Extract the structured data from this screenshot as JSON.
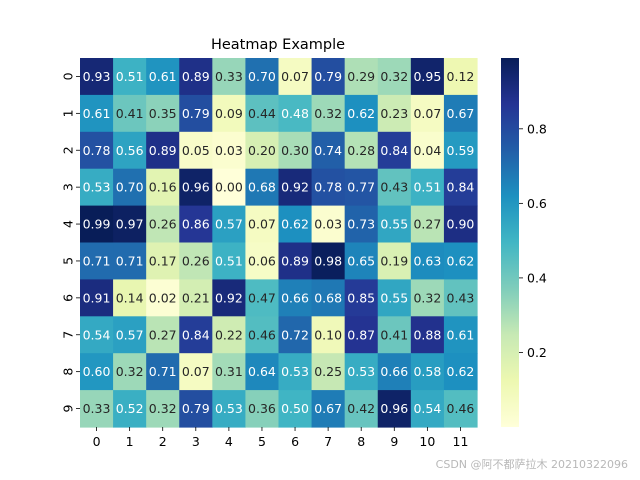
{
  "chart_data": {
    "type": "heatmap",
    "title": "Heatmap Example",
    "xlabel": "",
    "ylabel": "",
    "x_ticks": [
      "0",
      "1",
      "2",
      "3",
      "4",
      "5",
      "6",
      "7",
      "8",
      "9",
      "10",
      "11"
    ],
    "y_ticks": [
      "0",
      "1",
      "2",
      "3",
      "4",
      "5",
      "6",
      "7",
      "8",
      "9"
    ],
    "values": [
      [
        0.93,
        0.51,
        0.61,
        0.89,
        0.33,
        0.7,
        0.07,
        0.79,
        0.29,
        0.32,
        0.95,
        0.12
      ],
      [
        0.61,
        0.41,
        0.35,
        0.79,
        0.09,
        0.44,
        0.48,
        0.32,
        0.62,
        0.23,
        0.07,
        0.67
      ],
      [
        0.78,
        0.56,
        0.89,
        0.05,
        0.03,
        0.2,
        0.3,
        0.74,
        0.28,
        0.84,
        0.04,
        0.59
      ],
      [
        0.53,
        0.7,
        0.16,
        0.96,
        0.0,
        0.68,
        0.92,
        0.78,
        0.77,
        0.43,
        0.51,
        0.84
      ],
      [
        0.99,
        0.97,
        0.26,
        0.86,
        0.57,
        0.07,
        0.62,
        0.03,
        0.73,
        0.55,
        0.27,
        0.9
      ],
      [
        0.71,
        0.71,
        0.17,
        0.26,
        0.51,
        0.06,
        0.89,
        0.98,
        0.65,
        0.19,
        0.63,
        0.62
      ],
      [
        0.91,
        0.14,
        0.02,
        0.21,
        0.92,
        0.47,
        0.66,
        0.68,
        0.85,
        0.55,
        0.32,
        0.43
      ],
      [
        0.54,
        0.57,
        0.27,
        0.84,
        0.22,
        0.46,
        0.72,
        0.1,
        0.87,
        0.41,
        0.88,
        0.61
      ],
      [
        0.6,
        0.32,
        0.71,
        0.07,
        0.31,
        0.64,
        0.53,
        0.25,
        0.53,
        0.66,
        0.58,
        0.62
      ],
      [
        0.33,
        0.52,
        0.32,
        0.79,
        0.53,
        0.36,
        0.5,
        0.67,
        0.42,
        0.96,
        0.54,
        0.46
      ]
    ],
    "colormap": "YlGnBu",
    "colorbar": {
      "ticks": [
        "0.2",
        "0.4",
        "0.6",
        "0.8"
      ],
      "range": [
        0.0,
        0.99
      ]
    },
    "annotated": true,
    "grid": false
  },
  "watermark": "CSDN @阿不都萨拉木 20210322096"
}
